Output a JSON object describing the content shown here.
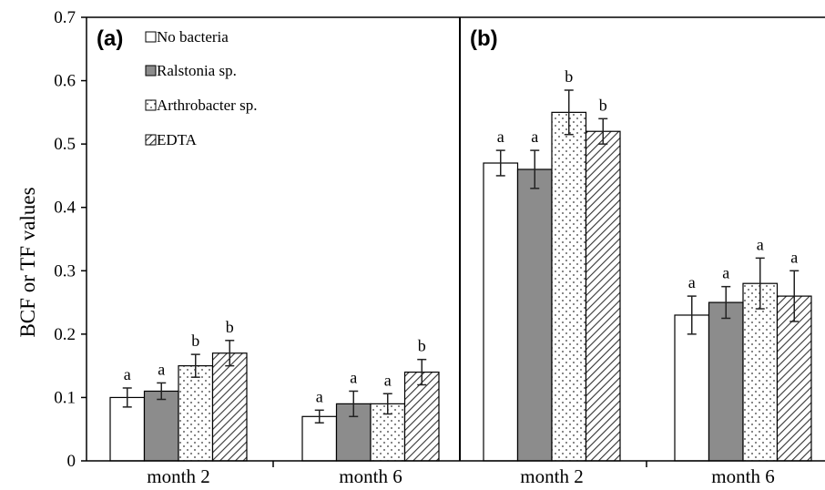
{
  "chart_data": {
    "type": "bar",
    "ylabel": "BCF or TF values",
    "ylim": [
      0,
      0.7
    ],
    "yticks": [
      "0",
      "0.1",
      "0.2",
      "0.3",
      "0.4",
      "0.5",
      "0.6",
      "0.7"
    ],
    "legend": {
      "placement": "top-left",
      "entries": [
        "No bacteria",
        "Ralstonia sp.",
        "Arthrobacter sp.",
        "EDTA"
      ]
    },
    "series_styles": [
      {
        "fill": "#ffffff",
        "pattern": "none"
      },
      {
        "fill": "#8c8c8c",
        "pattern": "none"
      },
      {
        "fill": "#ffffff",
        "pattern": "dots"
      },
      {
        "fill": "#ffffff",
        "pattern": "diagonal"
      }
    ],
    "panels": [
      {
        "label": "(a)",
        "categories": [
          "month 2",
          "month 6"
        ],
        "values": [
          [
            0.1,
            0.11,
            0.15,
            0.17
          ],
          [
            0.07,
            0.09,
            0.09,
            0.14
          ]
        ],
        "errors": [
          [
            0.015,
            0.013,
            0.018,
            0.02
          ],
          [
            0.01,
            0.02,
            0.016,
            0.02
          ]
        ],
        "letters": [
          [
            "a",
            "a",
            "b",
            "b"
          ],
          [
            "a",
            "a",
            "a",
            "b"
          ]
        ]
      },
      {
        "label": "(b)",
        "categories": [
          "month 2",
          "month 6"
        ],
        "values": [
          [
            0.47,
            0.46,
            0.55,
            0.52
          ],
          [
            0.23,
            0.25,
            0.28,
            0.26
          ]
        ],
        "errors": [
          [
            0.02,
            0.03,
            0.035,
            0.02
          ],
          [
            0.03,
            0.025,
            0.04,
            0.04
          ]
        ],
        "letters": [
          [
            "a",
            "a",
            "b",
            "b"
          ],
          [
            "a",
            "a",
            "a",
            "a"
          ]
        ]
      }
    ]
  }
}
